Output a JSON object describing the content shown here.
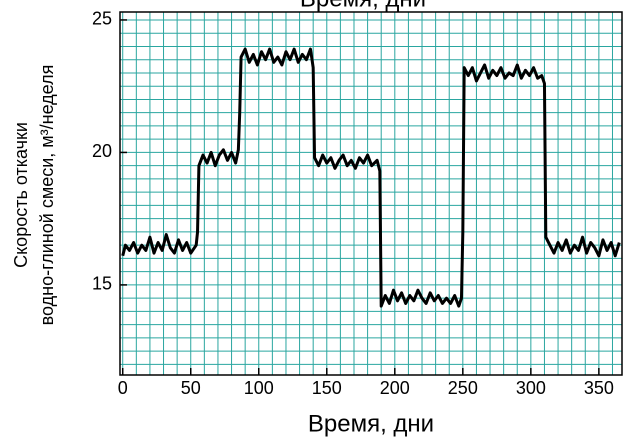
{
  "chart_data": {
    "type": "line",
    "title": "Время, дни",
    "x_label": "Время, дни",
    "y_label": [
      "Скорость откачки",
      "водно-глиной смеси, м³/неделя"
    ],
    "x": [
      0,
      2,
      5,
      8,
      11,
      14,
      17,
      20,
      23,
      26,
      29,
      32,
      35,
      38,
      41,
      44,
      47,
      50,
      54,
      55,
      56,
      59,
      62,
      65,
      68,
      71,
      74,
      77,
      80,
      83,
      85,
      86,
      87,
      90,
      93,
      96,
      99,
      102,
      105,
      108,
      111,
      114,
      117,
      120,
      123,
      126,
      129,
      132,
      135,
      138,
      140,
      141,
      144,
      147,
      150,
      153,
      156,
      159,
      162,
      165,
      168,
      171,
      174,
      177,
      180,
      183,
      187,
      189,
      190,
      193,
      196,
      199,
      202,
      205,
      208,
      211,
      214,
      217,
      220,
      223,
      226,
      229,
      232,
      235,
      238,
      241,
      244,
      247,
      249,
      250,
      251,
      254,
      257,
      260,
      263,
      266,
      269,
      272,
      275,
      278,
      281,
      284,
      287,
      290,
      293,
      296,
      299,
      302,
      305,
      308,
      310,
      311,
      314,
      317,
      320,
      323,
      326,
      329,
      332,
      335,
      338,
      341,
      344,
      347,
      350,
      353,
      356,
      359,
      362,
      365
    ],
    "series": [
      {
        "name": "Скорость откачки",
        "color": "#000000",
        "values": [
          16.1,
          16.5,
          16.3,
          16.6,
          16.2,
          16.5,
          16.3,
          16.8,
          16.2,
          16.6,
          16.3,
          16.9,
          16.4,
          16.2,
          16.7,
          16.3,
          16.6,
          16.2,
          16.5,
          17.0,
          19.5,
          19.9,
          19.6,
          20.0,
          19.5,
          19.9,
          20.1,
          19.7,
          20.0,
          19.6,
          20.1,
          21.5,
          23.6,
          23.9,
          23.4,
          23.7,
          23.3,
          23.8,
          23.5,
          23.9,
          23.4,
          23.6,
          23.3,
          23.8,
          23.5,
          23.9,
          23.4,
          23.7,
          23.5,
          23.9,
          23.2,
          19.8,
          19.5,
          19.9,
          19.6,
          19.8,
          19.4,
          19.7,
          19.9,
          19.5,
          19.7,
          19.4,
          19.8,
          19.6,
          19.9,
          19.5,
          19.7,
          19.3,
          14.2,
          14.6,
          14.3,
          14.8,
          14.4,
          14.7,
          14.3,
          14.6,
          14.4,
          14.8,
          14.5,
          14.3,
          14.7,
          14.4,
          14.6,
          14.3,
          14.5,
          14.3,
          14.6,
          14.2,
          14.5,
          17.0,
          23.2,
          22.9,
          23.2,
          22.7,
          23.0,
          23.3,
          22.8,
          23.1,
          22.9,
          23.2,
          22.8,
          23.0,
          22.9,
          23.3,
          22.8,
          23.1,
          22.9,
          23.2,
          22.8,
          22.9,
          22.6,
          16.8,
          16.5,
          16.2,
          16.6,
          16.3,
          16.7,
          16.2,
          16.5,
          16.3,
          16.8,
          16.2,
          16.6,
          16.4,
          16.1,
          16.7,
          16.3,
          16.6,
          16.1,
          16.6
        ]
      }
    ],
    "xlim": [
      -2,
      367
    ],
    "ylim": [
      11.6,
      25.3
    ],
    "xticks": [
      0,
      50,
      100,
      150,
      200,
      250,
      300,
      350
    ],
    "yticks": [
      15,
      20,
      25
    ],
    "minor_xticks": [
      0,
      10,
      20,
      30,
      40,
      50,
      60,
      70,
      80,
      90,
      100,
      110,
      120,
      130,
      140,
      150,
      160,
      170,
      180,
      190,
      200,
      210,
      220,
      230,
      240,
      250,
      260,
      270,
      280,
      290,
      300,
      310,
      320,
      330,
      340,
      350,
      360
    ],
    "minor_yticks": [
      12,
      12.5,
      13,
      13.5,
      14,
      14.5,
      15,
      15.5,
      16,
      16.5,
      17,
      17.5,
      18,
      18.5,
      19,
      19.5,
      20,
      20.5,
      21,
      21.5,
      22,
      22.5,
      23,
      23.5,
      24,
      24.5,
      25
    ],
    "grid": true,
    "grid_color": "#2aa6a0"
  }
}
